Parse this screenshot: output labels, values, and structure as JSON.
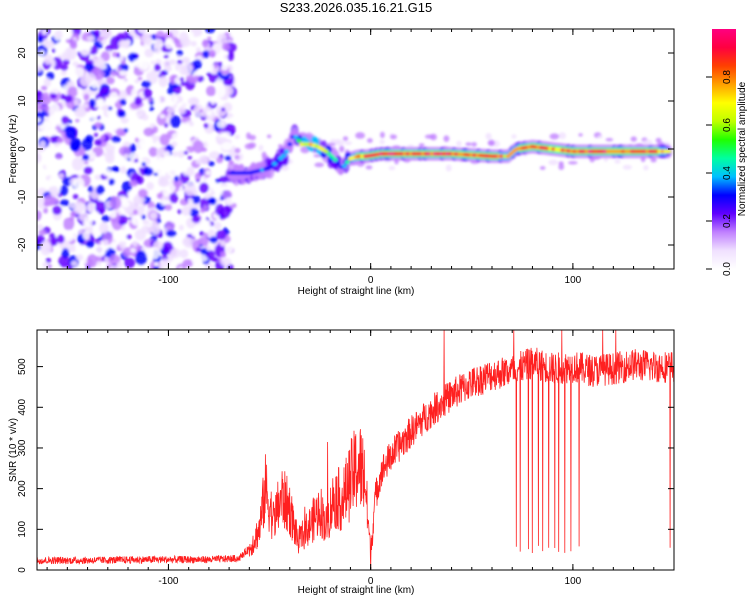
{
  "title": "S233.2026.035.16.21.G15",
  "chart_data": [
    {
      "type": "heatmap",
      "xlabel": "Height of straight line (km)",
      "ylabel": "Frequency (Hz)",
      "xlim": [
        -165,
        150
      ],
      "ylim": [
        -25,
        25
      ],
      "xticks": [
        -100,
        0,
        100
      ],
      "yticks": [
        -20,
        -10,
        0,
        10,
        20
      ],
      "colorbar": {
        "label": "Normalized spectral amplitude",
        "range": [
          0,
          1
        ],
        "ticks": [
          "0.0",
          "0.2",
          "0.4",
          "0.6",
          "0.8"
        ],
        "colors": [
          "#ffffff",
          "#f0e0ff",
          "#c080ff",
          "#6000ff",
          "#0000ff",
          "#00c0ff",
          "#00ffa0",
          "#20ff00",
          "#c0ff00",
          "#ffff00",
          "#ffa000",
          "#ff4000",
          "#ff0040",
          "#ff0080"
        ]
      },
      "ridge": {
        "x": [
          -70,
          -60,
          -50,
          -42,
          -38,
          -34,
          -30,
          -26,
          -22,
          -18,
          -14,
          -10,
          -6,
          -2,
          5,
          20,
          40,
          60,
          68,
          72,
          80,
          90,
          100,
          110,
          120,
          130,
          140,
          148
        ],
        "f": [
          -5,
          -5,
          -4,
          -1,
          3,
          1,
          1,
          0.5,
          -0.5,
          -2,
          -4,
          -2,
          -1.5,
          -1.5,
          -1,
          -1,
          -1,
          -1.5,
          -1.5,
          0,
          0.5,
          0,
          -0.5,
          -0.5,
          -0.5,
          -0.5,
          -0.5,
          -0.5
        ],
        "amp": [
          0.25,
          0.3,
          0.35,
          0.35,
          0.3,
          0.6,
          0.75,
          0.7,
          0.55,
          0.45,
          0.3,
          0.6,
          0.8,
          0.85,
          0.9,
          0.85,
          0.9,
          0.85,
          0.7,
          0.75,
          0.85,
          0.8,
          0.85,
          0.9,
          0.85,
          0.9,
          0.85,
          0.6
        ]
      }
    },
    {
      "type": "line",
      "xlabel": "Height of straight line (km)",
      "ylabel": "SNR (10 * v/v)",
      "xlim": [
        -165,
        150
      ],
      "ylim": [
        0,
        590
      ],
      "xticks": [
        -100,
        0,
        100
      ],
      "yticks": [
        0,
        100,
        200,
        300,
        400,
        500
      ],
      "series": [
        {
          "name": "SNR",
          "color": "#ff2020",
          "x": [
            -165,
            -140,
            -110,
            -80,
            -65,
            -60,
            -55,
            -52,
            -48,
            -44,
            -40,
            -36,
            -30,
            -25,
            -22,
            -18,
            -14,
            -10,
            -6,
            -3,
            0,
            2,
            5,
            10,
            20,
            30,
            40,
            50,
            60,
            70,
            80,
            90,
            100,
            110,
            120,
            130,
            140,
            150
          ],
          "y": [
            20,
            20,
            22,
            22,
            25,
            50,
            100,
            200,
            120,
            180,
            150,
            70,
            110,
            150,
            110,
            180,
            170,
            220,
            260,
            230,
            40,
            170,
            240,
            280,
            340,
            390,
            430,
            460,
            480,
            490,
            510,
            495,
            500,
            490,
            495,
            505,
            500,
            500
          ]
        }
      ],
      "dropouts": [
        72,
        74,
        78,
        80,
        83,
        85,
        88,
        91,
        93,
        96,
        99,
        103,
        148
      ]
    }
  ]
}
